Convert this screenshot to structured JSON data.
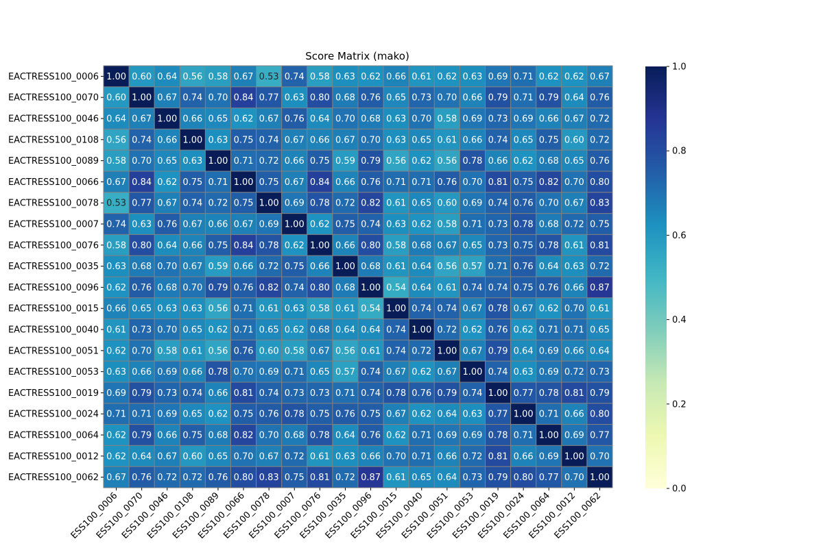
{
  "chart_data": {
    "type": "heatmap",
    "title": "Score Matrix (mako)",
    "xlabel": "",
    "ylabel": "",
    "labels": [
      "EACTRESS100_0006",
      "EACTRESS100_0070",
      "EACTRESS100_0046",
      "EACTRESS100_0108",
      "EACTRESS100_0089",
      "EACTRESS100_0066",
      "EACTRESS100_0078",
      "EACTRESS100_0007",
      "EACTRESS100_0076",
      "EACTRESS100_0035",
      "EACTRESS100_0096",
      "EACTRESS100_0015",
      "EACTRESS100_0040",
      "EACTRESS100_0051",
      "EACTRESS100_0053",
      "EACTRESS100_0019",
      "EACTRESS100_0024",
      "EACTRESS100_0064",
      "EACTRESS100_0012",
      "EACTRESS100_0062"
    ],
    "x_tick_labels": [
      "ESS100_0006",
      "ESS100_0070",
      "ESS100_0046",
      "ESS100_0108",
      "ESS100_0089",
      "ESS100_0066",
      "ESS100_0078",
      "ESS100_0007",
      "ESS100_0076",
      "ESS100_0035",
      "ESS100_0096",
      "ESS100_0015",
      "ESS100_0040",
      "ESS100_0051",
      "ESS100_0053",
      "ESS100_0019",
      "ESS100_0024",
      "ESS100_0064",
      "ESS100_0012",
      "ESS100_0062"
    ],
    "values": [
      [
        1.0,
        0.6,
        0.64,
        0.56,
        0.58,
        0.67,
        0.53,
        0.74,
        0.58,
        0.63,
        0.62,
        0.66,
        0.61,
        0.62,
        0.63,
        0.69,
        0.71,
        0.62,
        0.62,
        0.67
      ],
      [
        0.6,
        1.0,
        0.67,
        0.74,
        0.7,
        0.84,
        0.77,
        0.63,
        0.8,
        0.68,
        0.76,
        0.65,
        0.73,
        0.7,
        0.66,
        0.79,
        0.71,
        0.79,
        0.64,
        0.76
      ],
      [
        0.64,
        0.67,
        1.0,
        0.66,
        0.65,
        0.62,
        0.67,
        0.76,
        0.64,
        0.7,
        0.68,
        0.63,
        0.7,
        0.58,
        0.69,
        0.73,
        0.69,
        0.66,
        0.67,
        0.72
      ],
      [
        0.56,
        0.74,
        0.66,
        1.0,
        0.63,
        0.75,
        0.74,
        0.67,
        0.66,
        0.67,
        0.7,
        0.63,
        0.65,
        0.61,
        0.66,
        0.74,
        0.65,
        0.75,
        0.6,
        0.72
      ],
      [
        0.58,
        0.7,
        0.65,
        0.63,
        1.0,
        0.71,
        0.72,
        0.66,
        0.75,
        0.59,
        0.79,
        0.56,
        0.62,
        0.56,
        0.78,
        0.66,
        0.62,
        0.68,
        0.65,
        0.76
      ],
      [
        0.67,
        0.84,
        0.62,
        0.75,
        0.71,
        1.0,
        0.75,
        0.67,
        0.84,
        0.66,
        0.76,
        0.71,
        0.71,
        0.76,
        0.7,
        0.81,
        0.75,
        0.82,
        0.7,
        0.8
      ],
      [
        0.53,
        0.77,
        0.67,
        0.74,
        0.72,
        0.75,
        1.0,
        0.69,
        0.78,
        0.72,
        0.82,
        0.61,
        0.65,
        0.6,
        0.69,
        0.74,
        0.76,
        0.7,
        0.67,
        0.83
      ],
      [
        0.74,
        0.63,
        0.76,
        0.67,
        0.66,
        0.67,
        0.69,
        1.0,
        0.62,
        0.75,
        0.74,
        0.63,
        0.62,
        0.58,
        0.71,
        0.73,
        0.78,
        0.68,
        0.72,
        0.75
      ],
      [
        0.58,
        0.8,
        0.64,
        0.66,
        0.75,
        0.84,
        0.78,
        0.62,
        1.0,
        0.66,
        0.8,
        0.58,
        0.68,
        0.67,
        0.65,
        0.73,
        0.75,
        0.78,
        0.61,
        0.81
      ],
      [
        0.63,
        0.68,
        0.7,
        0.67,
        0.59,
        0.66,
        0.72,
        0.75,
        0.66,
        1.0,
        0.68,
        0.61,
        0.64,
        0.56,
        0.57,
        0.71,
        0.76,
        0.64,
        0.63,
        0.72
      ],
      [
        0.62,
        0.76,
        0.68,
        0.7,
        0.79,
        0.76,
        0.82,
        0.74,
        0.8,
        0.68,
        1.0,
        0.54,
        0.64,
        0.61,
        0.74,
        0.74,
        0.75,
        0.76,
        0.66,
        0.87
      ],
      [
        0.66,
        0.65,
        0.63,
        0.63,
        0.56,
        0.71,
        0.61,
        0.63,
        0.58,
        0.61,
        0.54,
        1.0,
        0.74,
        0.74,
        0.67,
        0.78,
        0.67,
        0.62,
        0.7,
        0.61
      ],
      [
        0.61,
        0.73,
        0.7,
        0.65,
        0.62,
        0.71,
        0.65,
        0.62,
        0.68,
        0.64,
        0.64,
        0.74,
        1.0,
        0.72,
        0.62,
        0.76,
        0.62,
        0.71,
        0.71,
        0.65
      ],
      [
        0.62,
        0.7,
        0.58,
        0.61,
        0.56,
        0.76,
        0.6,
        0.58,
        0.67,
        0.56,
        0.61,
        0.74,
        0.72,
        1.0,
        0.67,
        0.79,
        0.64,
        0.69,
        0.66,
        0.64
      ],
      [
        0.63,
        0.66,
        0.69,
        0.66,
        0.78,
        0.7,
        0.69,
        0.71,
        0.65,
        0.57,
        0.74,
        0.67,
        0.62,
        0.67,
        1.0,
        0.74,
        0.63,
        0.69,
        0.72,
        0.73
      ],
      [
        0.69,
        0.79,
        0.73,
        0.74,
        0.66,
        0.81,
        0.74,
        0.73,
        0.73,
        0.71,
        0.74,
        0.78,
        0.76,
        0.79,
        0.74,
        1.0,
        0.77,
        0.78,
        0.81,
        0.79
      ],
      [
        0.71,
        0.71,
        0.69,
        0.65,
        0.62,
        0.75,
        0.76,
        0.78,
        0.75,
        0.76,
        0.75,
        0.67,
        0.62,
        0.64,
        0.63,
        0.77,
        1.0,
        0.71,
        0.66,
        0.8
      ],
      [
        0.62,
        0.79,
        0.66,
        0.75,
        0.68,
        0.82,
        0.7,
        0.68,
        0.78,
        0.64,
        0.76,
        0.62,
        0.71,
        0.69,
        0.69,
        0.78,
        0.71,
        1.0,
        0.69,
        0.77
      ],
      [
        0.62,
        0.64,
        0.67,
        0.6,
        0.65,
        0.7,
        0.67,
        0.72,
        0.61,
        0.63,
        0.66,
        0.7,
        0.71,
        0.66,
        0.72,
        0.81,
        0.66,
        0.69,
        1.0,
        0.7
      ],
      [
        0.67,
        0.76,
        0.72,
        0.72,
        0.76,
        0.8,
        0.83,
        0.75,
        0.81,
        0.72,
        0.87,
        0.61,
        0.65,
        0.64,
        0.73,
        0.79,
        0.8,
        0.77,
        0.7,
        1.0
      ]
    ],
    "value_range": [
      0.0,
      1.0
    ],
    "colormap": "YlGnBu",
    "colorbar": {
      "ticks": [
        0.0,
        0.2,
        0.4,
        0.6,
        0.8,
        1.0
      ],
      "tick_labels": [
        "0.0",
        "0.2",
        "0.4",
        "0.6",
        "0.8",
        "1.0"
      ]
    },
    "cell_border_color": "#808080",
    "annotation_format": "0.00",
    "grid": false,
    "legend": "colorbar-right"
  }
}
